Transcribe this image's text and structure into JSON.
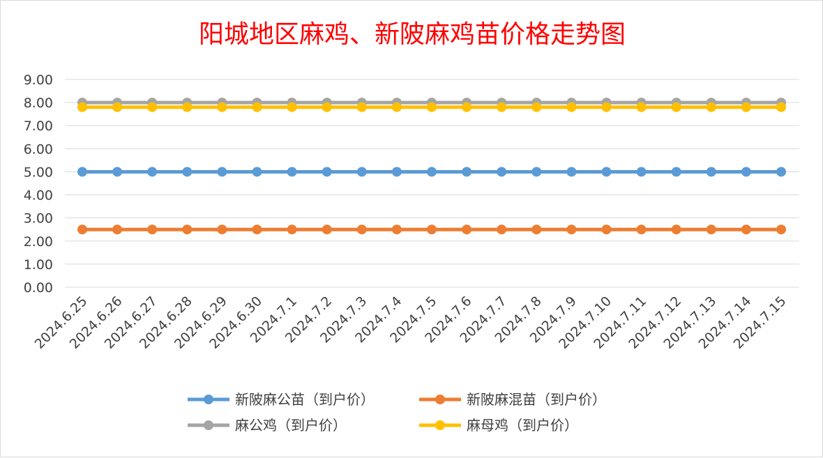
{
  "chart_data": {
    "type": "line",
    "title": "阳城地区麻鸡、新陂麻鸡苗价格走势图",
    "xlabel": "",
    "ylabel": "",
    "categories": [
      "2024.6.25",
      "2024.6.26",
      "2024.6.27",
      "2024.6.28",
      "2024.6.29",
      "2024.6.30",
      "2024.7.1",
      "2024.7.2",
      "2024.7.3",
      "2024.7.4",
      "2024.7.5",
      "2024.7.6",
      "2024.7.7",
      "2024.7.8",
      "2024.7.9",
      "2024.7.10",
      "2024.7.11",
      "2024.7.12",
      "2024.7.13",
      "2024.7.14",
      "2024.7.15"
    ],
    "y_ticks": [
      "0.00",
      "1.00",
      "2.00",
      "3.00",
      "4.00",
      "5.00",
      "6.00",
      "7.00",
      "8.00",
      "9.00"
    ],
    "ylim": [
      0,
      9
    ],
    "grid": true,
    "legend_position": "bottom",
    "series": [
      {
        "name": "新陂麻公苗（到户价）",
        "color": "#5b9bd5",
        "values": [
          5,
          5,
          5,
          5,
          5,
          5,
          5,
          5,
          5,
          5,
          5,
          5,
          5,
          5,
          5,
          5,
          5,
          5,
          5,
          5,
          5
        ]
      },
      {
        "name": "新陂麻混苗（到户价）",
        "color": "#ed7d31",
        "values": [
          2.5,
          2.5,
          2.5,
          2.5,
          2.5,
          2.5,
          2.5,
          2.5,
          2.5,
          2.5,
          2.5,
          2.5,
          2.5,
          2.5,
          2.5,
          2.5,
          2.5,
          2.5,
          2.5,
          2.5,
          2.5
        ]
      },
      {
        "name": "麻公鸡（到户价）",
        "color": "#a5a5a5",
        "values": [
          8,
          8,
          8,
          8,
          8,
          8,
          8,
          8,
          8,
          8,
          8,
          8,
          8,
          8,
          8,
          8,
          8,
          8,
          8,
          8,
          8
        ]
      },
      {
        "name": "麻母鸡（到户价）",
        "color": "#ffc000",
        "values": [
          7.8,
          7.8,
          7.8,
          7.8,
          7.8,
          7.8,
          7.8,
          7.8,
          7.8,
          7.8,
          7.8,
          7.8,
          7.8,
          7.8,
          7.8,
          7.8,
          7.8,
          7.8,
          7.8,
          7.8,
          7.8
        ]
      }
    ]
  }
}
